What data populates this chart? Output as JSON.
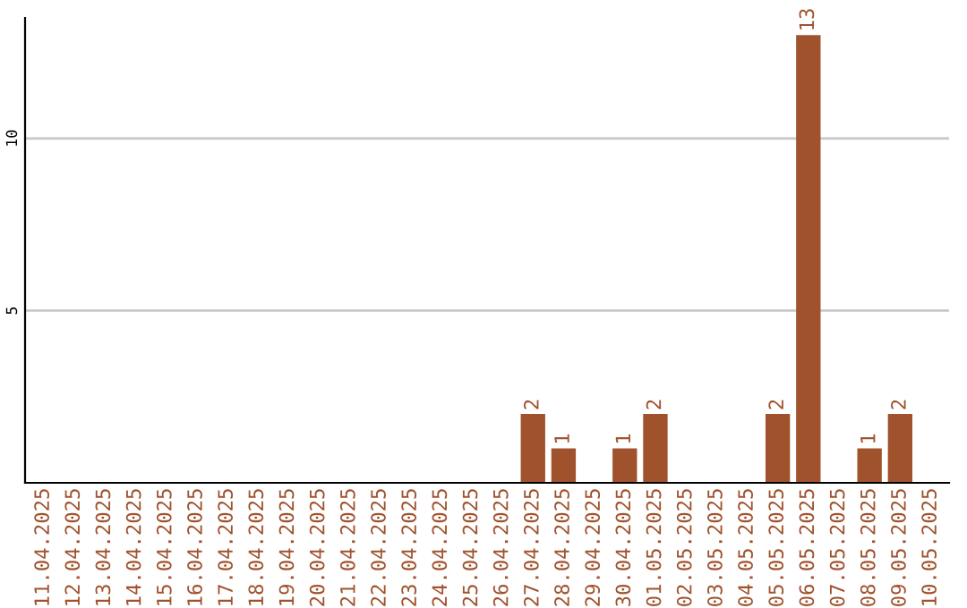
{
  "chart_data": {
    "type": "bar",
    "categories": [
      "11.04.2025",
      "12.04.2025",
      "13.04.2025",
      "14.04.2025",
      "15.04.2025",
      "16.04.2025",
      "17.04.2025",
      "18.04.2025",
      "19.04.2025",
      "20.04.2025",
      "21.04.2025",
      "22.04.2025",
      "23.04.2025",
      "24.04.2025",
      "25.04.2025",
      "26.04.2025",
      "27.04.2025",
      "28.04.2025",
      "29.04.2025",
      "30.04.2025",
      "01.05.2025",
      "02.05.2025",
      "03.05.2025",
      "04.05.2025",
      "05.05.2025",
      "06.05.2025",
      "07.05.2025",
      "08.05.2025",
      "09.05.2025",
      "10.05.2025"
    ],
    "values": [
      0,
      0,
      0,
      0,
      0,
      0,
      0,
      0,
      0,
      0,
      0,
      0,
      0,
      0,
      0,
      0,
      2,
      1,
      0,
      1,
      2,
      0,
      0,
      0,
      2,
      13,
      0,
      1,
      2,
      0
    ],
    "value_labels": [
      null,
      null,
      null,
      null,
      null,
      null,
      null,
      null,
      null,
      null,
      null,
      null,
      null,
      null,
      null,
      null,
      "2",
      "1",
      null,
      "1",
      "2",
      null,
      null,
      null,
      "2",
      "13",
      null,
      "1",
      "2",
      null
    ],
    "color": "#a0522d",
    "ylim": [
      0,
      13.5
    ],
    "yticks": [
      5,
      10
    ],
    "grid": "y"
  }
}
